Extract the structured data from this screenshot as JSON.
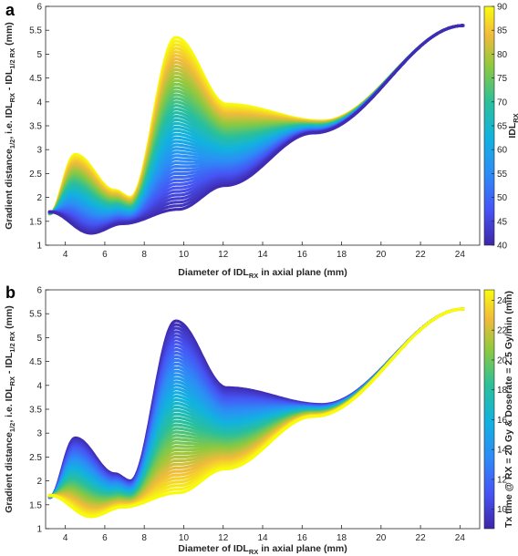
{
  "chart_data": [
    {
      "type": "scatter",
      "panel_label": "a",
      "xlabel": {
        "main": "Diameter of IDL",
        "sub": "RX",
        "suffix": " in axial plane (mm)"
      },
      "ylabel": {
        "p1": "Gradient distance",
        "s1": "1/2",
        "p2": ", i.e. IDL",
        "s2": "RX",
        "p3": " - IDL",
        "s3": "1/2 RX",
        "p4": "  (mm)"
      },
      "xlim": [
        3,
        25
      ],
      "ylim": [
        1,
        6
      ],
      "xticks": [
        "4",
        "6",
        "8",
        "10",
        "12",
        "14",
        "16",
        "18",
        "20",
        "22",
        "24"
      ],
      "yticks": [
        "1",
        "1.5",
        "2",
        "2.5",
        "3",
        "3.5",
        "4",
        "4.5",
        "5",
        "5.5",
        "6"
      ],
      "colorbar": {
        "label": {
          "main": "IDL",
          "sub": "RX"
        },
        "range": [
          40,
          90
        ],
        "ticks": [
          "40",
          "45",
          "50",
          "55",
          "60",
          "65",
          "70",
          "75",
          "80",
          "85",
          "90"
        ],
        "colormap": "parula",
        "reversed_mapping": false
      },
      "series": [
        {
          "x": [
            3.2,
            4.5,
            6.5,
            7.3,
            9.6,
            12.2,
            17.0,
            24.2
          ],
          "y": [
            1.65,
            2.9,
            2.15,
            2.0,
            5.35,
            3.95,
            3.6,
            5.6
          ]
        },
        {
          "x": [
            3.2,
            5.3,
            6.9,
            9.7,
            12.1,
            16.6,
            24.2
          ],
          "y": [
            1.7,
            1.25,
            1.45,
            1.75,
            2.25,
            3.35,
            5.6
          ]
        }
      ]
    },
    {
      "type": "scatter",
      "panel_label": "b",
      "xlabel": {
        "main": "Diameter of IDL",
        "sub": "RX",
        "suffix": " in axial plane (mm)"
      },
      "ylabel": {
        "p1": "Gradient distance",
        "s1": "1/2",
        "p2": ", i.e. IDL",
        "s2": "RX",
        "p3": " - IDL",
        "s3": "1/2 RX",
        "p4": "  (mm)"
      },
      "xlim": [
        3,
        25
      ],
      "ylim": [
        1,
        6
      ],
      "xticks": [
        "4",
        "6",
        "8",
        "10",
        "12",
        "14",
        "16",
        "18",
        "20",
        "22",
        "24"
      ],
      "yticks": [
        "1",
        "1.5",
        "2",
        "2.5",
        "3",
        "3.5",
        "4",
        "4.5",
        "5",
        "5.5",
        "6"
      ],
      "colorbar": {
        "label": {
          "main": "Tx time @ RX = 20 Gy & Doserate = 2.5 Gy/min (min)"
        },
        "range": [
          8.7,
          24.7
        ],
        "ticks": [
          "10",
          "12",
          "14",
          "16",
          "18",
          "20",
          "22",
          "24"
        ],
        "colormap": "parula",
        "reversed_mapping": true
      },
      "series": [
        {
          "x": [
            3.2,
            4.5,
            6.5,
            7.3,
            9.6,
            12.2,
            17.0,
            24.2
          ],
          "y": [
            1.65,
            2.9,
            2.15,
            2.0,
            5.35,
            3.95,
            3.6,
            5.6
          ]
        },
        {
          "x": [
            3.2,
            5.3,
            6.9,
            9.7,
            12.1,
            16.6,
            24.2
          ],
          "y": [
            1.7,
            1.25,
            1.45,
            1.75,
            2.25,
            3.35,
            5.6
          ]
        }
      ]
    }
  ]
}
